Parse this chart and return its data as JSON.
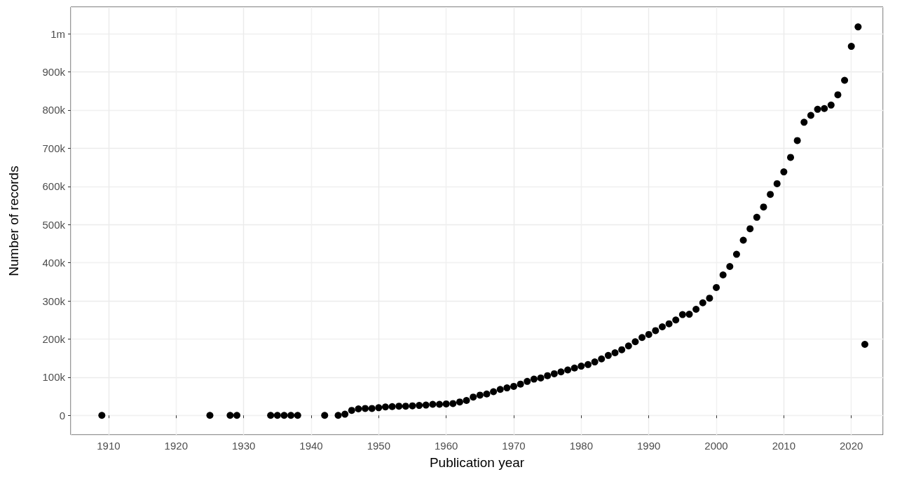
{
  "chart_data": {
    "type": "scatter",
    "xlabel": "Publication year",
    "ylabel": "Number of records",
    "marker": "circle",
    "grid": true,
    "series": [
      {
        "color": "#000000",
        "x": [
          1909,
          1925,
          1928,
          1929,
          1934,
          1935,
          1936,
          1937,
          1938,
          1942,
          1944,
          1945,
          1946,
          1947,
          1948,
          1949,
          1950,
          1951,
          1952,
          1953,
          1954,
          1955,
          1956,
          1957,
          1958,
          1959,
          1960,
          1961,
          1962,
          1963,
          1964,
          1965,
          1966,
          1967,
          1968,
          1969,
          1970,
          1971,
          1972,
          1973,
          1974,
          1975,
          1976,
          1977,
          1978,
          1979,
          1980,
          1981,
          1982,
          1983,
          1984,
          1985,
          1986,
          1987,
          1988,
          1989,
          1990,
          1991,
          1992,
          1993,
          1994,
          1995,
          1996,
          1997,
          1998,
          1999,
          2000,
          2001,
          2002,
          2003,
          2004,
          2005,
          2006,
          2007,
          2008,
          2009,
          2010,
          2011,
          2012,
          2013,
          2014,
          2015,
          2016,
          2017,
          2018,
          2019,
          2020,
          2021,
          2022
        ],
        "values": [
          0,
          0,
          0,
          0,
          0,
          0,
          0,
          0,
          0,
          0,
          0,
          3000,
          13000,
          17000,
          18000,
          18000,
          20000,
          22000,
          23000,
          24000,
          24000,
          25000,
          26000,
          27000,
          29000,
          29000,
          30000,
          31000,
          35000,
          39000,
          48000,
          53000,
          56000,
          62000,
          68000,
          72000,
          76000,
          82000,
          89000,
          95000,
          98000,
          104000,
          109000,
          114000,
          119000,
          124000,
          129000,
          133000,
          140000,
          148000,
          157000,
          164000,
          172000,
          182000,
          193000,
          204000,
          212000,
          222000,
          232000,
          240000,
          250000,
          264000,
          265000,
          278000,
          295000,
          307000,
          335000,
          368000,
          390000,
          422000,
          459000,
          489000,
          519000,
          546000,
          579000,
          607000,
          638000,
          676000,
          720000,
          768000,
          786000,
          802000,
          804000,
          813000,
          840000,
          878000,
          967000,
          1018000,
          186000
        ]
      }
    ],
    "xlim": [
      1904.4,
      2024.7
    ],
    "xticks": [
      1910,
      1920,
      1930,
      1940,
      1950,
      1960,
      1970,
      1980,
      1990,
      2000,
      2010,
      2020
    ],
    "ylim": [
      -51000,
      1070000
    ],
    "yticks": [
      0,
      {
        "value": 100000,
        "label": "100k"
      },
      {
        "value": 200000,
        "label": "200k"
      },
      {
        "value": 300000,
        "label": "300k"
      },
      {
        "value": 400000,
        "label": "400k"
      },
      {
        "value": 500000,
        "label": "500k"
      },
      {
        "value": 600000,
        "label": "600k"
      },
      {
        "value": 700000,
        "label": "700k"
      },
      {
        "value": 800000,
        "label": "800k"
      },
      {
        "value": 900000,
        "label": "900k"
      },
      {
        "value": 1000000,
        "label": "1m"
      }
    ]
  }
}
